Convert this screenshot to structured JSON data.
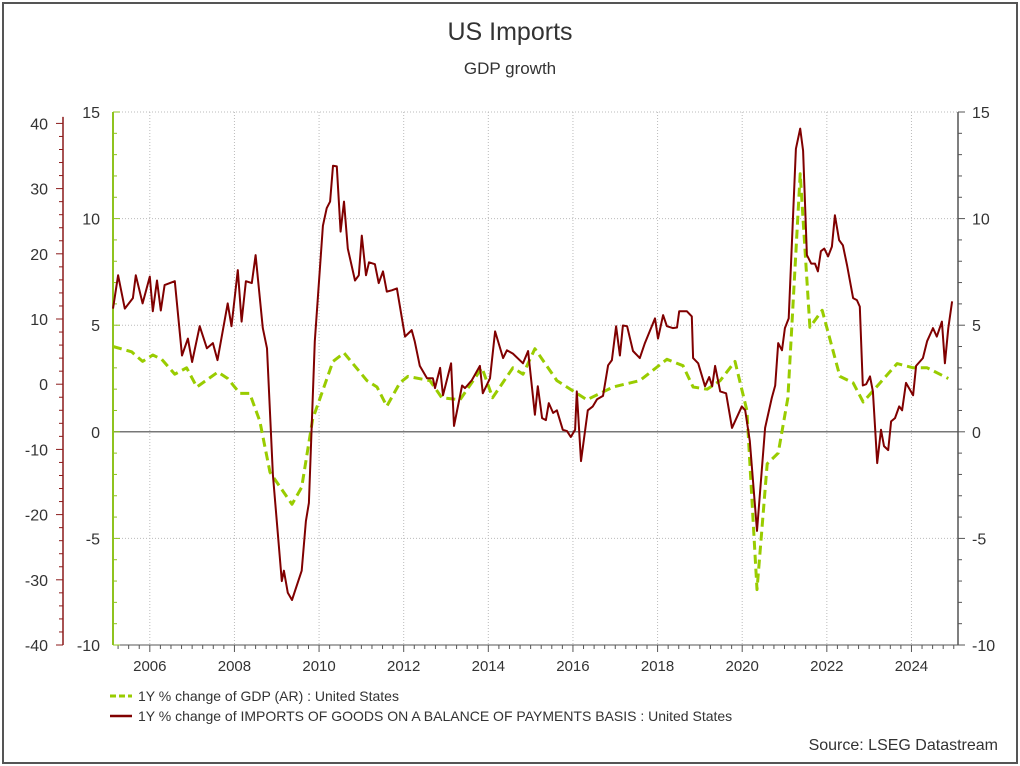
{
  "chart_data": {
    "type": "line",
    "title": "US Imports",
    "subtitle": "GDP growth",
    "source": "Source: LSEG Datastream",
    "xlabel": "",
    "xlim": [
      2005.13,
      2025.1
    ],
    "x_ticks": [
      "2006",
      "2008",
      "2010",
      "2012",
      "2014",
      "2016",
      "2018",
      "2020",
      "2022",
      "2024"
    ],
    "x_tick_values": [
      2006,
      2008,
      2010,
      2012,
      2014,
      2016,
      2018,
      2020,
      2022,
      2024
    ],
    "left_axis": {
      "ylim": [
        -40,
        41.75
      ],
      "ticks": [
        40,
        30,
        20,
        10,
        0,
        -10,
        -20,
        -30,
        -40
      ],
      "color": "#8b1a1a",
      "series": "imports"
    },
    "inner_axis": {
      "ylim": [
        -10,
        15
      ],
      "ticks": [
        15,
        10,
        5,
        0,
        -5,
        -10
      ],
      "color": "#8fc31f",
      "series": "gdp"
    },
    "right_axis": {
      "ylim": [
        -10,
        15
      ],
      "ticks": [
        15,
        10,
        5,
        0,
        -5,
        -10
      ]
    },
    "grid": true,
    "legend_placement": "bottom-left",
    "series": [
      {
        "name": "1Y % change of GDP (AR) : United States",
        "color": "#99cc00",
        "style": "dashed",
        "axis": "inner",
        "points": [
          [
            2005.13,
            4.0
          ],
          [
            2005.57,
            3.75
          ],
          [
            2005.83,
            3.3
          ],
          [
            2006.07,
            3.6
          ],
          [
            2006.28,
            3.4
          ],
          [
            2006.59,
            2.7
          ],
          [
            2006.87,
            3.0
          ],
          [
            2007.11,
            2.1
          ],
          [
            2007.61,
            2.8
          ],
          [
            2007.84,
            2.5
          ],
          [
            2008.13,
            1.8
          ],
          [
            2008.36,
            1.8
          ],
          [
            2008.6,
            0.5
          ],
          [
            2008.84,
            -1.9
          ],
          [
            2009.36,
            -3.4
          ],
          [
            2009.59,
            -2.6
          ],
          [
            2009.85,
            0.6
          ],
          [
            2010.33,
            3.3
          ],
          [
            2010.59,
            3.7
          ],
          [
            2011.13,
            2.4
          ],
          [
            2011.37,
            2.1
          ],
          [
            2011.6,
            1.2
          ],
          [
            2011.91,
            2.3
          ],
          [
            2012.1,
            2.6
          ],
          [
            2012.62,
            2.4
          ],
          [
            2012.9,
            1.6
          ],
          [
            2013.33,
            1.5
          ],
          [
            2013.85,
            3.0
          ],
          [
            2014.1,
            1.6
          ],
          [
            2014.58,
            3.0
          ],
          [
            2014.82,
            2.7
          ],
          [
            2015.1,
            3.9
          ],
          [
            2015.62,
            2.4
          ],
          [
            2016.33,
            1.5
          ],
          [
            2016.95,
            2.1
          ],
          [
            2017.58,
            2.4
          ],
          [
            2018.22,
            3.4
          ],
          [
            2018.6,
            3.1
          ],
          [
            2018.84,
            2.1
          ],
          [
            2019.17,
            2.0
          ],
          [
            2019.48,
            2.4
          ],
          [
            2019.83,
            3.3
          ],
          [
            2020.11,
            1.0
          ],
          [
            2020.35,
            -7.4
          ],
          [
            2020.59,
            -1.5
          ],
          [
            2020.85,
            -1.0
          ],
          [
            2021.08,
            1.6
          ],
          [
            2021.37,
            12.1
          ],
          [
            2021.6,
            4.9
          ],
          [
            2021.89,
            5.7
          ],
          [
            2022.31,
            2.6
          ],
          [
            2022.62,
            2.3
          ],
          [
            2022.86,
            1.4
          ],
          [
            2023.66,
            3.2
          ],
          [
            2024.04,
            3.0
          ],
          [
            2024.37,
            3.0
          ],
          [
            2024.87,
            2.5
          ]
        ]
      },
      {
        "name": "1Y % change of IMPORTS OF GOODS ON A BALANCE OF PAYMENTS BASIS : United States",
        "color": "#800000",
        "style": "solid",
        "axis": "left",
        "points": [
          [
            2005.13,
            11.6
          ],
          [
            2005.25,
            16.7
          ],
          [
            2005.41,
            11.6
          ],
          [
            2005.6,
            13.2
          ],
          [
            2005.67,
            16.7
          ],
          [
            2005.83,
            12.4
          ],
          [
            2006.0,
            16.5
          ],
          [
            2006.07,
            11.2
          ],
          [
            2006.17,
            15.9
          ],
          [
            2006.26,
            11.3
          ],
          [
            2006.35,
            15.2
          ],
          [
            2006.59,
            15.8
          ],
          [
            2006.76,
            4.4
          ],
          [
            2006.9,
            7.0
          ],
          [
            2007.0,
            3.4
          ],
          [
            2007.18,
            8.9
          ],
          [
            2007.35,
            5.5
          ],
          [
            2007.49,
            6.3
          ],
          [
            2007.6,
            3.7
          ],
          [
            2007.84,
            12.4
          ],
          [
            2007.93,
            8.9
          ],
          [
            2008.08,
            17.5
          ],
          [
            2008.17,
            9.6
          ],
          [
            2008.27,
            15.8
          ],
          [
            2008.41,
            15.5
          ],
          [
            2008.5,
            19.8
          ],
          [
            2008.67,
            8.6
          ],
          [
            2008.77,
            5.5
          ],
          [
            2008.91,
            -13.9
          ],
          [
            2009.12,
            -30.2
          ],
          [
            2009.17,
            -28.6
          ],
          [
            2009.26,
            -32.0
          ],
          [
            2009.36,
            -33.1
          ],
          [
            2009.59,
            -28.6
          ],
          [
            2009.69,
            -21.0
          ],
          [
            2009.76,
            -18.2
          ],
          [
            2009.9,
            6.6
          ],
          [
            2010.09,
            24.3
          ],
          [
            2010.18,
            27.0
          ],
          [
            2010.26,
            28.0
          ],
          [
            2010.33,
            33.5
          ],
          [
            2010.42,
            33.4
          ],
          [
            2010.51,
            23.4
          ],
          [
            2010.59,
            28.0
          ],
          [
            2010.68,
            20.8
          ],
          [
            2010.85,
            15.9
          ],
          [
            2010.94,
            16.7
          ],
          [
            2011.01,
            22.8
          ],
          [
            2011.11,
            16.7
          ],
          [
            2011.18,
            18.7
          ],
          [
            2011.32,
            18.4
          ],
          [
            2011.41,
            15.5
          ],
          [
            2011.51,
            17.3
          ],
          [
            2011.6,
            14.2
          ],
          [
            2011.72,
            14.4
          ],
          [
            2011.84,
            14.7
          ],
          [
            2012.03,
            7.3
          ],
          [
            2012.19,
            8.3
          ],
          [
            2012.26,
            6.6
          ],
          [
            2012.38,
            2.8
          ],
          [
            2012.55,
            0.9
          ],
          [
            2012.69,
            0.9
          ],
          [
            2012.74,
            -0.6
          ],
          [
            2012.86,
            2.5
          ],
          [
            2012.93,
            -1.7
          ],
          [
            2013.12,
            3.2
          ],
          [
            2013.19,
            -6.4
          ],
          [
            2013.38,
            -0.2
          ],
          [
            2013.45,
            -0.6
          ],
          [
            2013.61,
            0.6
          ],
          [
            2013.8,
            2.8
          ],
          [
            2013.87,
            -1.4
          ],
          [
            2014.04,
            0.9
          ],
          [
            2014.16,
            8.1
          ],
          [
            2014.35,
            4.0
          ],
          [
            2014.44,
            5.2
          ],
          [
            2014.58,
            4.7
          ],
          [
            2014.82,
            3.2
          ],
          [
            2014.94,
            5.1
          ],
          [
            2015.1,
            -4.7
          ],
          [
            2015.17,
            -0.3
          ],
          [
            2015.27,
            -5.2
          ],
          [
            2015.36,
            -5.5
          ],
          [
            2015.43,
            -2.9
          ],
          [
            2015.53,
            -4.4
          ],
          [
            2015.62,
            -4.0
          ],
          [
            2015.76,
            -7.0
          ],
          [
            2015.86,
            -7.2
          ],
          [
            2015.95,
            -8.1
          ],
          [
            2016.05,
            -7.0
          ],
          [
            2016.09,
            -1.1
          ],
          [
            2016.19,
            -11.8
          ],
          [
            2016.35,
            -4.0
          ],
          [
            2016.47,
            -3.4
          ],
          [
            2016.57,
            -2.3
          ],
          [
            2016.71,
            -1.8
          ],
          [
            2016.83,
            2.9
          ],
          [
            2016.92,
            3.7
          ],
          [
            2017.02,
            8.9
          ],
          [
            2017.11,
            4.4
          ],
          [
            2017.18,
            9.0
          ],
          [
            2017.28,
            8.9
          ],
          [
            2017.42,
            5.1
          ],
          [
            2017.58,
            4.0
          ],
          [
            2017.7,
            6.3
          ],
          [
            2017.94,
            10.1
          ],
          [
            2018.01,
            7.0
          ],
          [
            2018.13,
            10.6
          ],
          [
            2018.22,
            8.9
          ],
          [
            2018.36,
            8.6
          ],
          [
            2018.46,
            8.7
          ],
          [
            2018.51,
            11.2
          ],
          [
            2018.69,
            11.2
          ],
          [
            2018.81,
            10.4
          ],
          [
            2018.84,
            4.0
          ],
          [
            2018.96,
            3.2
          ],
          [
            2019.12,
            -0.3
          ],
          [
            2019.22,
            1.1
          ],
          [
            2019.29,
            -0.3
          ],
          [
            2019.36,
            2.8
          ],
          [
            2019.48,
            -1.1
          ],
          [
            2019.62,
            -1.4
          ],
          [
            2019.76,
            -6.7
          ],
          [
            2019.99,
            -3.4
          ],
          [
            2020.07,
            -4.0
          ],
          [
            2020.18,
            -8.7
          ],
          [
            2020.35,
            -22.5
          ],
          [
            2020.54,
            -6.7
          ],
          [
            2020.7,
            -2.1
          ],
          [
            2020.78,
            -0.2
          ],
          [
            2020.85,
            6.3
          ],
          [
            2020.94,
            5.2
          ],
          [
            2021.01,
            8.6
          ],
          [
            2021.1,
            10.1
          ],
          [
            2021.27,
            36.1
          ],
          [
            2021.37,
            39.2
          ],
          [
            2021.44,
            35.8
          ],
          [
            2021.53,
            19.8
          ],
          [
            2021.63,
            18.5
          ],
          [
            2021.72,
            18.5
          ],
          [
            2021.79,
            17.3
          ],
          [
            2021.86,
            20.4
          ],
          [
            2021.94,
            20.8
          ],
          [
            2022.03,
            19.6
          ],
          [
            2022.12,
            21.1
          ],
          [
            2022.19,
            25.9
          ],
          [
            2022.29,
            22.1
          ],
          [
            2022.38,
            21.3
          ],
          [
            2022.48,
            18.2
          ],
          [
            2022.62,
            13.2
          ],
          [
            2022.71,
            12.9
          ],
          [
            2022.78,
            11.9
          ],
          [
            2022.85,
            -0.2
          ],
          [
            2022.93,
            0.0
          ],
          [
            2023.02,
            1.2
          ],
          [
            2023.09,
            -1.1
          ],
          [
            2023.19,
            -12.1
          ],
          [
            2023.28,
            -7.0
          ],
          [
            2023.35,
            -9.5
          ],
          [
            2023.45,
            -10.1
          ],
          [
            2023.52,
            -5.7
          ],
          [
            2023.61,
            -5.2
          ],
          [
            2023.71,
            -3.4
          ],
          [
            2023.78,
            -4.0
          ],
          [
            2023.87,
            0.2
          ],
          [
            2024.04,
            -1.7
          ],
          [
            2024.11,
            2.8
          ],
          [
            2024.27,
            4.0
          ],
          [
            2024.37,
            6.6
          ],
          [
            2024.51,
            8.6
          ],
          [
            2024.6,
            7.3
          ],
          [
            2024.72,
            9.6
          ],
          [
            2024.79,
            3.2
          ],
          [
            2024.87,
            8.6
          ],
          [
            2024.96,
            12.7
          ]
        ]
      }
    ]
  }
}
